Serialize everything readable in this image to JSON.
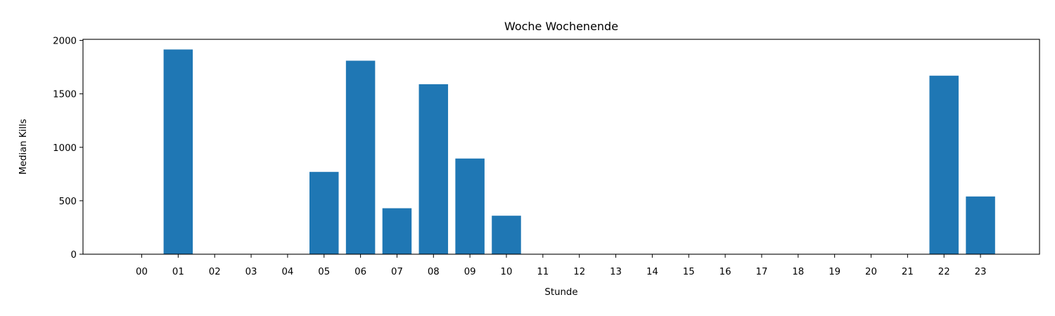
{
  "chart_data": {
    "type": "bar",
    "title": "Woche Wochenende",
    "xlabel": "Stunde",
    "ylabel": "Median Kills",
    "categories": [
      "00",
      "01",
      "02",
      "03",
      "04",
      "05",
      "06",
      "07",
      "08",
      "09",
      "10",
      "11",
      "12",
      "13",
      "14",
      "15",
      "16",
      "17",
      "18",
      "19",
      "20",
      "21",
      "22",
      "23"
    ],
    "values": [
      0,
      1915,
      0,
      0,
      0,
      770,
      1810,
      430,
      1590,
      895,
      360,
      0,
      0,
      0,
      0,
      0,
      0,
      0,
      0,
      0,
      0,
      0,
      1670,
      540
    ],
    "yticks": [
      0,
      500,
      1000,
      1500,
      2000
    ],
    "ylim": [
      0,
      2010
    ],
    "bar_color": "#1f77b4",
    "grid": false,
    "legend": false
  }
}
